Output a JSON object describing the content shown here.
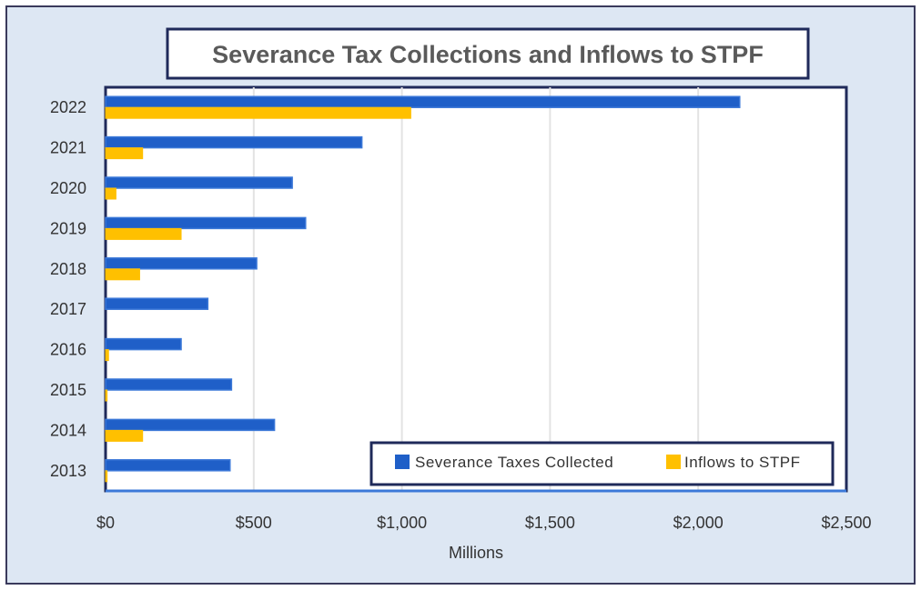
{
  "chart_data": {
    "type": "bar",
    "orientation": "horizontal",
    "title": "Severance Tax Collections and Inflows to STPF",
    "xlabel": "Millions",
    "ylabel": "",
    "xlim": [
      0,
      2500
    ],
    "x_ticks": [
      0,
      500,
      1000,
      1500,
      2000,
      2500
    ],
    "x_tick_labels": [
      "$0",
      "$500",
      "$1,000",
      "$1,500",
      "$2,000",
      "$2,500"
    ],
    "categories": [
      "2013",
      "2014",
      "2015",
      "2016",
      "2017",
      "2018",
      "2019",
      "2020",
      "2021",
      "2022"
    ],
    "series": [
      {
        "name": "Severance Taxes Collected",
        "color": "#1f5fc8",
        "values": [
          420,
          570,
          425,
          255,
          345,
          510,
          675,
          630,
          865,
          2140
        ]
      },
      {
        "name": "Inflows to STPF",
        "color": "#ffc000",
        "values": [
          5,
          125,
          5,
          10,
          0,
          115,
          255,
          35,
          125,
          1030
        ]
      }
    ],
    "grid": "vertical",
    "legend_position": "bottom-right inside plot"
  }
}
